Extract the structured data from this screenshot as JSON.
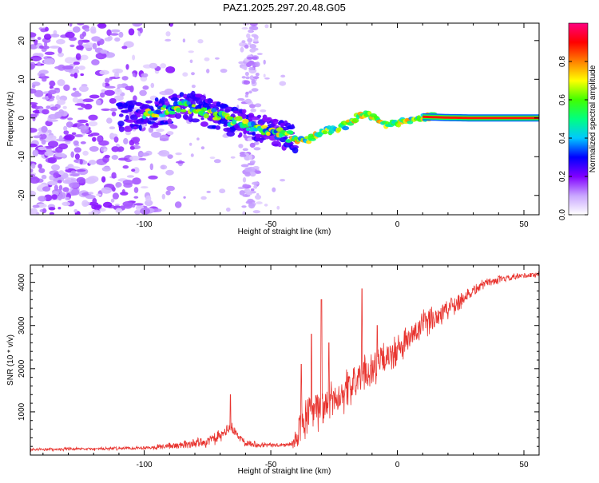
{
  "title": "PAZ1.2025.297.20.48.G05",
  "chart_data": [
    {
      "type": "heatmap",
      "name": "spectrogram",
      "xlabel": "Height of straight line (km)",
      "ylabel": "Frequency (Hz)",
      "xlim": [
        -145,
        56
      ],
      "ylim": [
        -25,
        24.5
      ],
      "xticks": [
        -100,
        -50,
        0,
        50
      ],
      "xtick_labels": [
        "-100",
        "-50",
        "0",
        "50"
      ],
      "yticks": [
        -20,
        -10,
        0,
        10,
        20
      ],
      "ytick_labels": [
        "-20",
        "-10",
        "0",
        "10",
        "20"
      ],
      "ridge": {
        "x": [
          -100,
          -95,
          -90,
          -85,
          -80,
          -75,
          -70,
          -65,
          -60,
          -55,
          -50,
          -45,
          -40,
          -37,
          -35,
          -30,
          -25,
          -20,
          -15,
          -12,
          -10,
          -5,
          0,
          5,
          10,
          15,
          20,
          30,
          40,
          56
        ],
        "y": [
          0.5,
          1.5,
          2.5,
          3.0,
          2.8,
          1.5,
          0.2,
          -0.8,
          -2.0,
          -2.8,
          -3.5,
          -4.2,
          -5.5,
          -6.0,
          -5.5,
          -3.8,
          -2.8,
          -1.8,
          0.5,
          1.2,
          0.2,
          -1.5,
          -1.5,
          -0.8,
          0.3,
          0.2,
          0.1,
          0.0,
          0.0,
          0.0
        ]
      },
      "colorbar": {
        "label": "Normalized spectral amplitude",
        "range": [
          0,
          1
        ],
        "ticks": [
          0.0,
          0.2,
          0.4,
          0.6,
          0.8
        ],
        "tick_labels": [
          "0.0",
          "0.2",
          "0.4",
          "0.6",
          "0.8"
        ],
        "colors": [
          "#ffffff",
          "#c9a6ff",
          "#8000ff",
          "#0000ff",
          "#00c8ff",
          "#00ff80",
          "#40ff00",
          "#ffff00",
          "#ff8000",
          "#ff0000",
          "#ff0080"
        ]
      }
    },
    {
      "type": "line",
      "name": "snr",
      "xlabel": "Height of straight line (km)",
      "ylabel": "SNR (10 * v/v)",
      "xlim": [
        -145,
        56
      ],
      "ylim": [
        0,
        4400
      ],
      "xticks": [
        -100,
        -50,
        0,
        50
      ],
      "xtick_labels": [
        "-100",
        "-50",
        "0",
        "50"
      ],
      "yticks": [
        1000,
        2000,
        3000,
        4000
      ],
      "ytick_labels": [
        "1000",
        "2000",
        "3000",
        "4000"
      ],
      "line_color": "#e8332e",
      "trend": {
        "x": [
          -145,
          -120,
          -100,
          -85,
          -75,
          -70,
          -66,
          -62,
          -58,
          -50,
          -45,
          -41,
          -38,
          -35,
          -30,
          -25,
          -20,
          -15,
          -10,
          -5,
          0,
          5,
          10,
          20,
          30,
          35,
          40,
          50,
          56
        ],
        "y": [
          130,
          140,
          170,
          230,
          320,
          420,
          650,
          380,
          260,
          230,
          230,
          250,
          700,
          900,
          1100,
          1300,
          1500,
          1800,
          2000,
          2200,
          2400,
          2700,
          3000,
          3400,
          3800,
          4000,
          4050,
          4150,
          4180
        ]
      },
      "spikes": {
        "x": [
          -66,
          -38,
          -34,
          -30,
          -27,
          -14,
          -8
        ],
        "y": [
          1400,
          2100,
          2800,
          3600,
          2600,
          3850,
          3000
        ]
      },
      "noise_amplitude": {
        "x": [
          -145,
          -100,
          -70,
          -50,
          -42,
          -38,
          -20,
          0,
          20,
          35,
          56
        ],
        "y": [
          40,
          50,
          180,
          60,
          70,
          600,
          550,
          450,
          350,
          120,
          90
        ]
      }
    }
  ]
}
